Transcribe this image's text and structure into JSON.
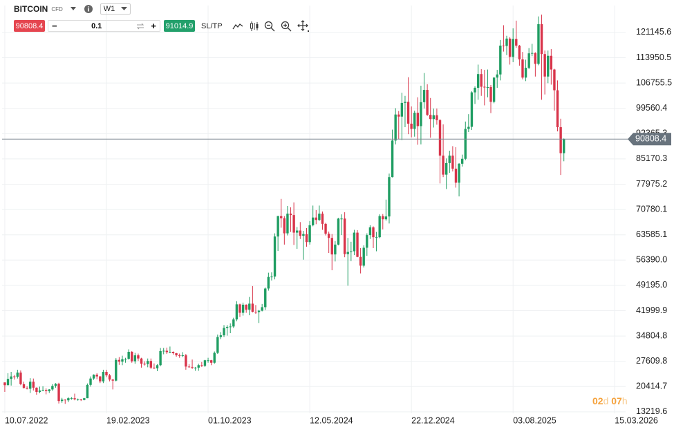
{
  "toolbar": {
    "symbol": "BITCOIN",
    "kind": "CFD",
    "timeframe": "W1",
    "sell": "90808.4",
    "minus": "−",
    "volume": "0.1",
    "plus": "+",
    "buy": "91014.9",
    "sltp": "SL/TP"
  },
  "chart_data": {
    "type": "candlestick",
    "x": [
      "2022-07-10",
      "2022-07-17",
      "2022-07-24",
      "2022-07-31",
      "2022-08-07",
      "2022-08-14",
      "2022-08-21",
      "2022-08-28",
      "2022-09-04",
      "2022-09-11",
      "2022-09-18",
      "2022-09-25",
      "2022-10-02",
      "2022-10-09",
      "2022-10-16",
      "2022-10-23",
      "2022-10-30",
      "2022-11-06",
      "2022-11-13",
      "2022-11-20",
      "2022-11-27",
      "2022-12-04",
      "2022-12-11",
      "2022-12-18",
      "2022-12-25",
      "2023-01-01",
      "2023-01-08",
      "2023-01-15",
      "2023-01-22",
      "2023-01-29",
      "2023-02-05",
      "2023-02-12",
      "2023-02-19",
      "2023-02-26",
      "2023-03-05",
      "2023-03-12",
      "2023-03-19",
      "2023-03-26",
      "2023-04-02",
      "2023-04-09",
      "2023-04-16",
      "2023-04-23",
      "2023-04-30",
      "2023-05-07",
      "2023-05-14",
      "2023-05-21",
      "2023-05-28",
      "2023-06-04",
      "2023-06-11",
      "2023-06-18",
      "2023-06-25",
      "2023-07-02",
      "2023-07-09",
      "2023-07-16",
      "2023-07-23",
      "2023-07-30",
      "2023-08-06",
      "2023-08-13",
      "2023-08-20",
      "2023-08-27",
      "2023-09-03",
      "2023-09-10",
      "2023-09-17",
      "2023-09-24",
      "2023-10-01",
      "2023-10-08",
      "2023-10-15",
      "2023-10-22",
      "2023-10-29",
      "2023-11-05",
      "2023-11-12",
      "2023-11-19",
      "2023-11-26",
      "2023-12-03",
      "2023-12-10",
      "2023-12-17",
      "2023-12-24",
      "2023-12-31",
      "2024-01-07",
      "2024-01-14",
      "2024-01-21",
      "2024-01-28",
      "2024-02-04",
      "2024-02-11",
      "2024-02-18",
      "2024-02-25",
      "2024-03-03",
      "2024-03-10",
      "2024-03-17",
      "2024-03-24",
      "2024-03-31",
      "2024-04-07",
      "2024-04-14",
      "2024-04-21",
      "2024-04-28",
      "2024-05-05",
      "2024-05-12",
      "2024-05-19",
      "2024-05-26",
      "2024-06-02",
      "2024-06-09",
      "2024-06-16",
      "2024-06-23",
      "2024-06-30",
      "2024-07-07",
      "2024-07-14",
      "2024-07-21",
      "2024-07-28",
      "2024-08-04",
      "2024-08-11",
      "2024-08-18",
      "2024-08-25",
      "2024-09-01",
      "2024-09-08",
      "2024-09-15",
      "2024-09-22",
      "2024-09-29",
      "2024-10-06",
      "2024-10-13",
      "2024-10-20",
      "2024-10-27",
      "2024-11-03",
      "2024-11-10",
      "2024-11-17",
      "2024-11-24",
      "2024-12-01",
      "2024-12-08",
      "2024-12-15",
      "2024-12-22",
      "2024-12-29",
      "2025-01-05",
      "2025-01-12",
      "2025-01-19",
      "2025-01-26",
      "2025-02-02",
      "2025-02-09",
      "2025-02-16",
      "2025-02-23",
      "2025-03-02",
      "2025-03-09",
      "2025-03-16",
      "2025-03-23",
      "2025-03-30",
      "2025-04-06",
      "2025-04-13",
      "2025-04-20",
      "2025-04-27",
      "2025-05-04",
      "2025-05-11",
      "2025-05-18",
      "2025-05-25",
      "2025-06-01",
      "2025-06-08",
      "2025-06-15",
      "2025-06-22",
      "2025-06-29",
      "2025-07-06",
      "2025-07-13",
      "2025-07-20",
      "2025-07-27",
      "2025-08-03",
      "2025-08-10",
      "2025-08-17",
      "2025-08-24",
      "2025-08-31",
      "2025-09-07",
      "2025-09-14",
      "2025-09-21",
      "2025-09-28",
      "2025-10-05",
      "2025-10-12",
      "2025-10-19",
      "2025-10-26",
      "2025-11-02",
      "2025-11-09",
      "2025-11-16",
      "2025-11-23"
    ],
    "open": [
      21600,
      20800,
      22600,
      23300,
      23200,
      24400,
      21100,
      20000,
      19800,
      21800,
      20100,
      18900,
      19300,
      19400,
      19100,
      19600,
      20600,
      21200,
      16300,
      16700,
      16500,
      17100,
      17100,
      16800,
      16800,
      16600,
      17100,
      20900,
      22700,
      23800,
      23300,
      21900,
      24600,
      23600,
      22400,
      22100,
      28000,
      27500,
      28200,
      28300,
      30300,
      27600,
      29300,
      28400,
      26900,
      26800,
      27700,
      25800,
      25600,
      26500,
      30500,
      30600,
      30200,
      30300,
      29900,
      29300,
      29100,
      29300,
      26100,
      26000,
      25800,
      25800,
      26500,
      26300,
      27900,
      27900,
      27200,
      30000,
      34500,
      35000,
      37100,
      37400,
      37500,
      39500,
      43800,
      41400,
      43700,
      42300,
      44000,
      41700,
      41600,
      42000,
      43000,
      48300,
      51600,
      51700,
      63100,
      68900,
      68300,
      64000,
      69600,
      69200,
      64200,
      64800,
      63300,
      63800,
      61500,
      66300,
      68500,
      67800,
      69600,
      66700,
      63900,
      62700,
      58000,
      60800,
      68200,
      68200,
      58100,
      58700,
      58900,
      64200,
      57300,
      54800,
      59900,
      63500,
      65700,
      62900,
      62900,
      68900,
      68000,
      68800,
      80000,
      90400,
      97800,
      97200,
      101100,
      101400,
      95200,
      93700,
      98300,
      94500,
      101300,
      104800,
      97700,
      96500,
      97600,
      96200,
      86100,
      80700,
      84000,
      86100,
      82400,
      78400,
      83800,
      85200,
      93700,
      94300,
      104100,
      105400,
      109300,
      105700,
      105600,
      105600,
      101400,
      108300,
      109200,
      117400,
      117300,
      119400,
      114200,
      119300,
      117400,
      113500,
      108300,
      111100,
      115200,
      115300,
      112200,
      123500,
      115000,
      108600,
      114500,
      110600,
      104700,
      94200,
      86800
    ],
    "high": [
      21600,
      24200,
      24600,
      23700,
      25200,
      25000,
      21800,
      20500,
      22800,
      22700,
      20200,
      20400,
      20500,
      19900,
      19700,
      21100,
      21400,
      21500,
      17200,
      16800,
      17400,
      17400,
      18400,
      17000,
      16900,
      17200,
      21300,
      23300,
      23900,
      24200,
      23400,
      25200,
      25200,
      24000,
      22600,
      28500,
      28800,
      29200,
      28600,
      31000,
      30500,
      30000,
      29800,
      28600,
      27600,
      28400,
      28400,
      27000,
      26800,
      31400,
      31400,
      31500,
      31800,
      30400,
      30000,
      29800,
      30200,
      29700,
      26800,
      28100,
      26000,
      26900,
      27400,
      28000,
      28600,
      28000,
      30400,
      35200,
      35900,
      37900,
      37900,
      38400,
      40000,
      44700,
      44000,
      44300,
      43800,
      45900,
      49000,
      43600,
      42200,
      43900,
      48600,
      52800,
      52900,
      64000,
      69000,
      73800,
      68900,
      71800,
      71400,
      72800,
      65800,
      67200,
      64700,
      65500,
      67500,
      71900,
      70600,
      71900,
      70200,
      67000,
      64500,
      63800,
      61800,
      68400,
      69400,
      70000,
      62700,
      61600,
      65000,
      64900,
      59800,
      60600,
      64000,
      66300,
      66000,
      64400,
      69400,
      69500,
      73600,
      81000,
      93500,
      99600,
      98800,
      104000,
      103100,
      108400,
      100100,
      98900,
      102700,
      106000,
      109600,
      106400,
      102500,
      99500,
      99500,
      96500,
      95000,
      85300,
      87500,
      88800,
      88500,
      84000,
      86400,
      95800,
      97900,
      104400,
      105800,
      112000,
      110700,
      110500,
      110600,
      106200,
      108400,
      110500,
      119000,
      123200,
      120200,
      119800,
      122300,
      124500,
      117600,
      115600,
      113400,
      116700,
      117900,
      115500,
      125700,
      126200,
      116000,
      116000,
      116400,
      110800,
      107500,
      96600,
      91000
    ],
    "low": [
      18900,
      20800,
      20700,
      22400,
      22700,
      20800,
      19900,
      19600,
      18600,
      19300,
      18100,
      18500,
      19100,
      18200,
      18600,
      19200,
      20100,
      15600,
      15800,
      15500,
      16000,
      16700,
      16500,
      16400,
      16300,
      16500,
      17100,
      20400,
      22300,
      22500,
      21400,
      21400,
      23100,
      21900,
      19600,
      21900,
      26600,
      26500,
      27200,
      28100,
      27200,
      26900,
      27700,
      25800,
      26400,
      25900,
      25400,
      25400,
      24800,
      26200,
      29600,
      29700,
      29900,
      29500,
      28900,
      28600,
      28800,
      25200,
      25800,
      25400,
      24900,
      24900,
      26000,
      26000,
      27200,
      26500,
      26900,
      29700,
      33900,
      34500,
      34900,
      35600,
      37100,
      39000,
      40200,
      40600,
      41400,
      40700,
      41500,
      41100,
      38500,
      41800,
      42200,
      47700,
      50600,
      50900,
      59000,
      65600,
      60800,
      63400,
      64400,
      60700,
      59600,
      62400,
      56500,
      60200,
      60800,
      66000,
      66600,
      67500,
      65000,
      63400,
      58400,
      53500,
      56000,
      60600,
      63500,
      57200,
      49100,
      56100,
      57800,
      57200,
      52600,
      54300,
      57600,
      62400,
      59800,
      58900,
      62600,
      65100,
      67600,
      66800,
      79900,
      89300,
      90800,
      90500,
      94200,
      92200,
      91300,
      91500,
      89200,
      89300,
      99500,
      97400,
      91200,
      94100,
      94900,
      78200,
      80000,
      76600,
      81200,
      81600,
      77000,
      74500,
      83000,
      84800,
      92800,
      93400,
      100800,
      102000,
      103100,
      100400,
      102700,
      98200,
      101000,
      105400,
      107500,
      115700,
      114700,
      112000,
      112700,
      116800,
      111700,
      107800,
      107300,
      110700,
      114400,
      108600,
      111800,
      102000,
      103500,
      106700,
      106300,
      98900,
      93000,
      80600,
      84500
    ],
    "close": [
      20800,
      22600,
      23300,
      23200,
      24400,
      21100,
      20000,
      19800,
      21800,
      20100,
      18900,
      19300,
      19400,
      19100,
      19600,
      20600,
      21200,
      16300,
      16700,
      16500,
      17100,
      17100,
      16800,
      16800,
      16600,
      17100,
      20900,
      22700,
      23800,
      23300,
      21900,
      24600,
      23600,
      22400,
      22100,
      28000,
      27500,
      28200,
      28300,
      30300,
      27600,
      29300,
      28400,
      26900,
      26800,
      27700,
      25800,
      25600,
      26500,
      30500,
      30600,
      30200,
      30300,
      29900,
      29300,
      29100,
      29300,
      26100,
      26000,
      25800,
      25800,
      26500,
      26300,
      27900,
      27900,
      27200,
      30000,
      34500,
      35000,
      37100,
      37400,
      37500,
      39500,
      43800,
      41400,
      43700,
      42300,
      44000,
      41700,
      41600,
      42000,
      43000,
      48300,
      51600,
      51700,
      63100,
      68900,
      68300,
      64000,
      69600,
      69200,
      64200,
      64800,
      63300,
      63800,
      61500,
      66300,
      68500,
      67800,
      69600,
      66700,
      63900,
      62700,
      58000,
      60800,
      68200,
      68200,
      58100,
      58700,
      58900,
      64200,
      57300,
      54800,
      59900,
      63500,
      65700,
      62900,
      62900,
      68900,
      68000,
      68800,
      80000,
      90400,
      97800,
      97200,
      101100,
      101400,
      95200,
      93700,
      98300,
      94500,
      101300,
      104800,
      97700,
      96500,
      97600,
      96200,
      86100,
      80700,
      84000,
      86100,
      82400,
      78400,
      83800,
      85200,
      93700,
      94300,
      104100,
      105400,
      109300,
      105700,
      105600,
      105600,
      101400,
      108300,
      109200,
      117400,
      117300,
      119400,
      114200,
      119300,
      117400,
      113500,
      108300,
      111100,
      115200,
      115300,
      112200,
      123500,
      115000,
      108600,
      114500,
      110600,
      104700,
      94200,
      86800,
      90808.4
    ],
    "up_color": "#1f9d62",
    "down_color": "#d8344a",
    "xlim": [
      "2022-07-04",
      "2026-04-08"
    ],
    "xticks": [
      {
        "value": "2022-07-10",
        "label": "10.07.2022"
      },
      {
        "value": "2023-02-19",
        "label": "19.02.2023"
      },
      {
        "value": "2023-10-01",
        "label": "01.10.2023"
      },
      {
        "value": "2024-05-12",
        "label": "12.05.2024"
      },
      {
        "value": "2024-12-22",
        "label": "22.12.2024"
      },
      {
        "value": "2025-08-03",
        "label": "03.08.2025"
      },
      {
        "value": "2026-03-15",
        "label": "15.03.2026"
      }
    ],
    "ylim": [
      12800,
      128800
    ],
    "yticks": [
      13219.6,
      20414.7,
      27609.8,
      34804.8,
      41999.9,
      {
        "value": 49195,
        "label": "49195.0"
      },
      {
        "value": 56390,
        "label": "56390.0"
      },
      63585.1,
      70780.1,
      77975.2,
      85170.3,
      92365.3,
      99560.4,
      106755.5,
      113950.5,
      121145.6
    ],
    "grid": true,
    "price_line": 90808.4,
    "countdown": [
      "02",
      "d",
      "07",
      "h"
    ]
  }
}
